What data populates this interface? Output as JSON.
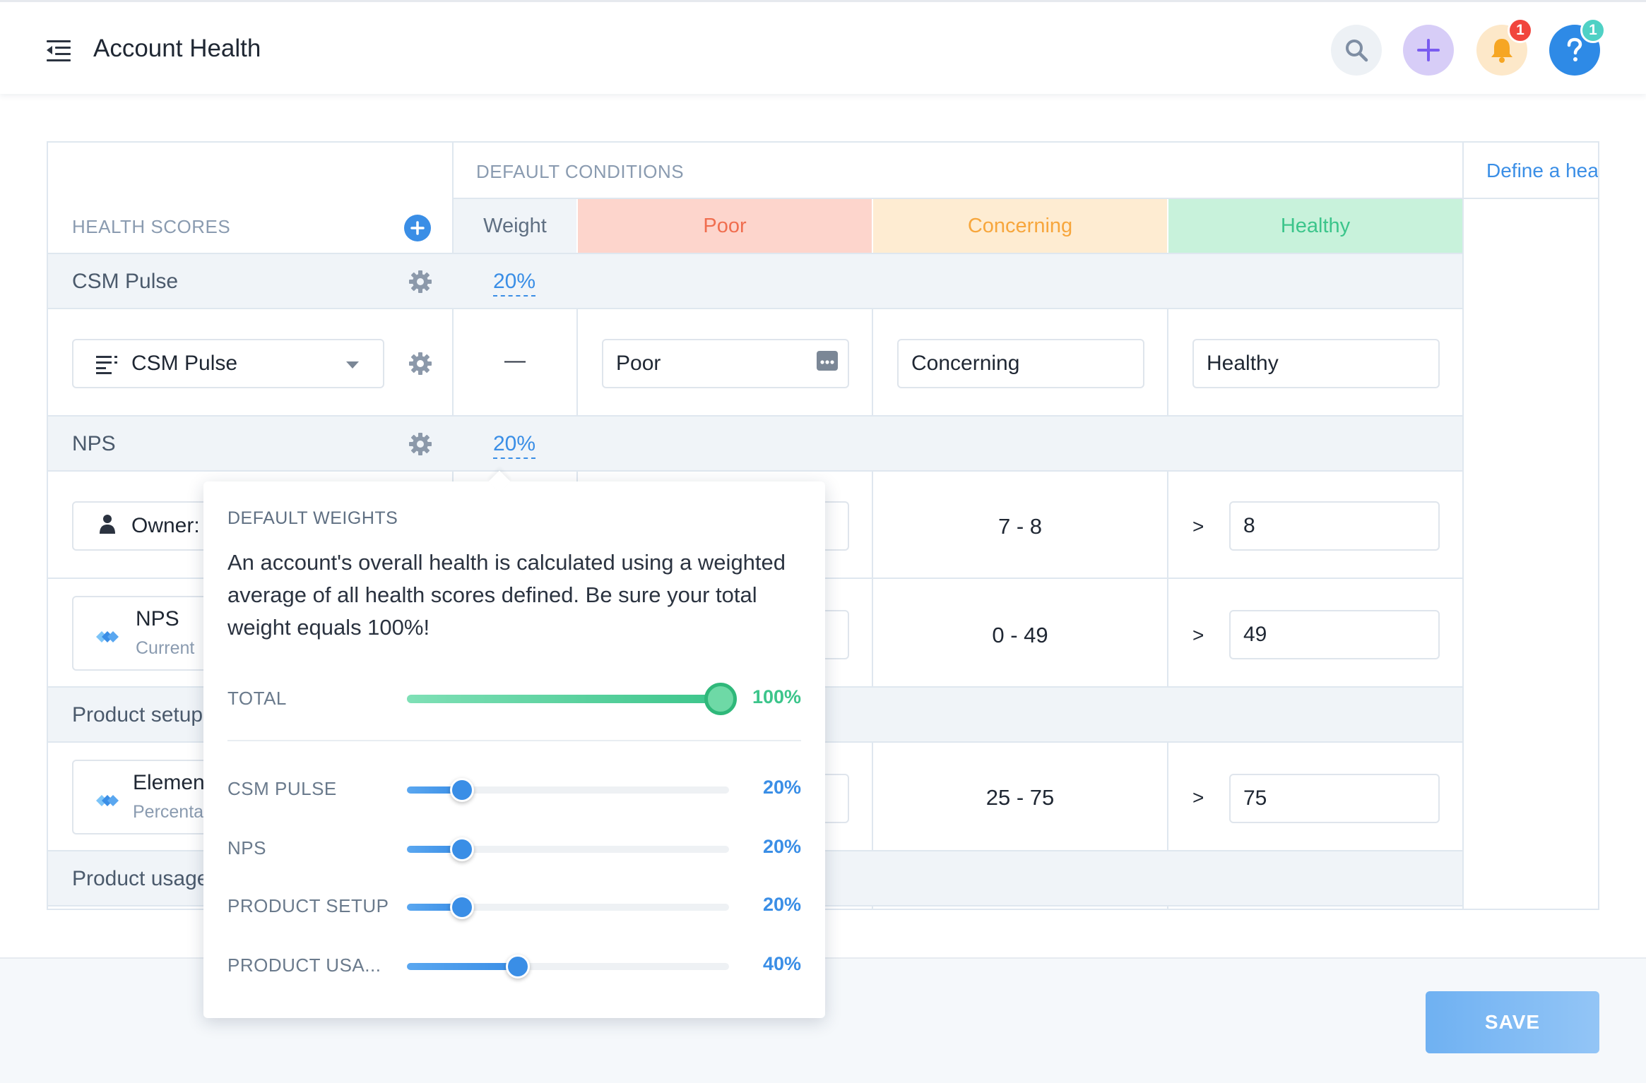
{
  "header": {
    "title": "Account Health",
    "icons": {
      "menu": "menu-collapse-icon",
      "search": "search-icon",
      "add": "plus-icon",
      "bell": "bell-icon",
      "help": "help-icon"
    },
    "notifications_count": "1",
    "help_count": "1",
    "colors": {
      "add_bg": "#d7cdf7",
      "bell_bg": "#fde8c9",
      "help_bg": "#2e8ae6",
      "badge_red": "#f1453d",
      "badge_teal": "#4fd1c5"
    }
  },
  "table": {
    "health_scores_header": "HEALTH SCORES",
    "default_conditions_header": "DEFAULT CONDITIONS",
    "define_link": "Define a hea",
    "columns": {
      "weight": "Weight",
      "poor": "Poor",
      "concerning": "Concerning",
      "healthy": "Healthy"
    },
    "column_colors": {
      "poor_bg": "#fdd5cc",
      "poor_text": "#f06e4f",
      "concerning_bg": "#feecd2",
      "concerning_text": "#f7a63c",
      "healthy_bg": "#c8f2db",
      "healthy_text": "#3cc58b"
    },
    "groups": [
      {
        "label": "CSM Pulse",
        "weight": "20%",
        "rows": [
          {
            "select_label": "CSM Pulse",
            "icon": "list-icon",
            "weight": "—",
            "poor_value": "Poor",
            "concerning_value": "Concerning",
            "healthy_value": "Healthy"
          }
        ]
      },
      {
        "label": "NPS",
        "weight": "20%",
        "rows": [
          {
            "select_label": "Owner:",
            "icon": "person-icon",
            "concerning_range": "7 - 8",
            "healthy_op": ">",
            "healthy_value": "8"
          },
          {
            "select_label": "NPS",
            "sublabel": "Current",
            "icon": "diamond-icon",
            "concerning_range": "0 - 49",
            "healthy_op": ">",
            "healthy_value": "49"
          }
        ]
      },
      {
        "label": "Product setup",
        "rows": [
          {
            "select_label": "Element",
            "sublabel": "Percenta",
            "icon": "diamond-icon",
            "concerning_range": "25 - 75",
            "healthy_op": ">",
            "healthy_value": "75"
          }
        ]
      },
      {
        "label": "Product usage",
        "rows": []
      }
    ]
  },
  "popover": {
    "title": "DEFAULT WEIGHTS",
    "description": "An account's overall health is calculated using a weighted average of all health scores defined. Be sure your total weight equals 100%!",
    "total": {
      "label": "TOTAL",
      "value": 100,
      "display": "100%"
    },
    "sliders": [
      {
        "label": "CSM PULSE",
        "value": 20,
        "display": "20%"
      },
      {
        "label": "NPS",
        "value": 20,
        "display": "20%"
      },
      {
        "label": "PRODUCT SETUP",
        "value": 20,
        "display": "20%"
      },
      {
        "label": "PRODUCT USA...",
        "value": 40,
        "display": "40%"
      }
    ]
  },
  "footer": {
    "save_label": "SAVE"
  }
}
